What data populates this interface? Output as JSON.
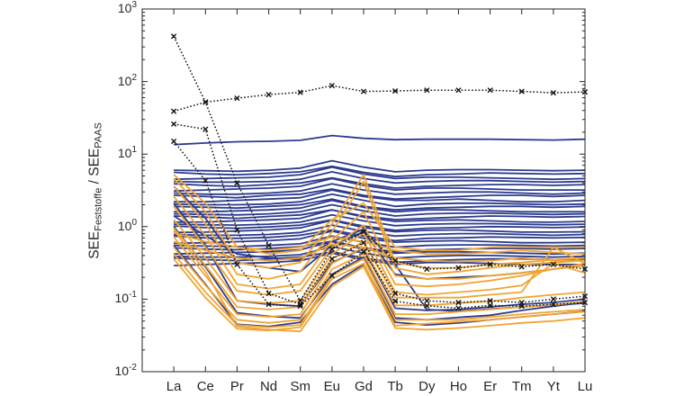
{
  "figure": {
    "background": "#ffffff",
    "axis_color": "#262626"
  },
  "labels": {
    "y_axis": {
      "a": "SEE",
      "a_sub": "Feststoffe",
      "sep": " / ",
      "b": "SEE",
      "b_sub": "PAAS"
    }
  },
  "chart_data": {
    "type": "line",
    "title": "",
    "xlabel": "",
    "ylabel": "SEE_Feststoffe / SEE_PAAS",
    "x_categories": [
      "La",
      "Ce",
      "Pr",
      "Nd",
      "Sm",
      "Eu",
      "Gd",
      "Tb",
      "Dy",
      "Ho",
      "Er",
      "Tm",
      "Yt",
      "Lu"
    ],
    "y_scale": "log",
    "ylim": [
      0.01,
      1000
    ],
    "y_tick_exponents": [
      3,
      2,
      1,
      0,
      -1,
      -2
    ],
    "grid": false,
    "legend": "none",
    "colors": {
      "navy": "#2c3b8d",
      "orange": "#f0a532",
      "black": "#141414"
    },
    "series": [
      {
        "id": "navy-00",
        "color": "navy",
        "style": "solid",
        "values": [
          13.5,
          14.2,
          14.8,
          15,
          15.5,
          18,
          16.5,
          15.8,
          16,
          16,
          16,
          15.8,
          15.6,
          16
        ]
      },
      {
        "id": "navy-01",
        "color": "navy",
        "style": "solid",
        "values": [
          6,
          5.9,
          5.8,
          6,
          6.4,
          8.1,
          6.6,
          5.7,
          6,
          6.1,
          6.1,
          6,
          5.9,
          6
        ]
      },
      {
        "id": "navy-02",
        "color": "navy",
        "style": "solid",
        "values": [
          5.6,
          5.3,
          5.2,
          5.4,
          5.7,
          6.8,
          5.6,
          4.9,
          5.2,
          5.3,
          5.5,
          5.4,
          5.3,
          5.4
        ]
      },
      {
        "id": "navy-03",
        "color": "navy",
        "style": "solid",
        "values": [
          4.5,
          4.6,
          4.7,
          4.8,
          5.2,
          6.6,
          5.3,
          4.6,
          4.8,
          4.8,
          4.7,
          4.6,
          4.5,
          4.6
        ]
      },
      {
        "id": "navy-04",
        "color": "navy",
        "style": "solid",
        "values": [
          4.2,
          4.1,
          4.1,
          4.2,
          4.5,
          5.7,
          4.6,
          4,
          4.2,
          4.3,
          4.3,
          4.2,
          4.1,
          4.2
        ]
      },
      {
        "id": "navy-05",
        "color": "navy",
        "style": "solid",
        "values": [
          3.9,
          3.7,
          3.6,
          3.8,
          4,
          4.7,
          3.9,
          3.4,
          3.6,
          3.7,
          3.8,
          3.8,
          3.7,
          3.8
        ]
      },
      {
        "id": "navy-06",
        "color": "navy",
        "style": "solid",
        "values": [
          3.1,
          3.2,
          3.3,
          3.4,
          3.6,
          4.6,
          3.7,
          3.2,
          3.4,
          3.4,
          3.3,
          3.2,
          3.2,
          3.2
        ]
      },
      {
        "id": "navy-07",
        "color": "navy",
        "style": "solid",
        "values": [
          2.9,
          2.8,
          2.8,
          2.9,
          3.1,
          3.9,
          3.2,
          2.8,
          2.9,
          3,
          3,
          2.9,
          2.8,
          2.9
        ]
      },
      {
        "id": "navy-08",
        "color": "navy",
        "style": "solid",
        "values": [
          2.7,
          2.6,
          2.5,
          2.7,
          2.8,
          3.3,
          2.7,
          2.4,
          2.5,
          2.6,
          2.7,
          2.7,
          2.6,
          2.7
        ]
      },
      {
        "id": "navy-09",
        "color": "navy",
        "style": "solid",
        "values": [
          2.2,
          2.2,
          2.3,
          2.4,
          2.5,
          3.2,
          2.6,
          2.3,
          2.3,
          2.4,
          2.3,
          2.2,
          2.2,
          2.3
        ]
      },
      {
        "id": "navy-10",
        "color": "navy",
        "style": "solid",
        "values": [
          2.05,
          2,
          2,
          2.05,
          2.2,
          2.8,
          2.3,
          1.9,
          2.05,
          2.1,
          2.1,
          2.05,
          2,
          2.05
        ]
      },
      {
        "id": "navy-11",
        "color": "navy",
        "style": "solid",
        "values": [
          1.9,
          1.85,
          1.8,
          1.9,
          2,
          2.4,
          1.9,
          1.7,
          1.8,
          1.85,
          1.9,
          1.9,
          1.85,
          1.9
        ]
      },
      {
        "id": "navy-12",
        "color": "navy",
        "style": "solid",
        "values": [
          1.6,
          1.6,
          1.65,
          1.7,
          1.8,
          2.3,
          1.85,
          1.6,
          1.7,
          1.7,
          1.65,
          1.6,
          1.6,
          1.6
        ]
      },
      {
        "id": "navy-13",
        "color": "navy",
        "style": "solid",
        "values": [
          1.5,
          1.47,
          1.45,
          1.5,
          1.6,
          2,
          1.65,
          1.4,
          1.5,
          1.53,
          1.53,
          1.5,
          1.47,
          1.5
        ]
      },
      {
        "id": "navy-14",
        "color": "navy",
        "style": "solid",
        "values": [
          1.4,
          1.35,
          1.3,
          1.38,
          1.45,
          1.7,
          1.4,
          1.25,
          1.3,
          1.35,
          1.4,
          1.38,
          1.35,
          1.38
        ]
      },
      {
        "id": "navy-15",
        "color": "navy",
        "style": "solid",
        "values": [
          1.15,
          1.16,
          1.2,
          1.24,
          1.3,
          1.7,
          1.35,
          1.18,
          1.22,
          1.24,
          1.2,
          1.16,
          1.15,
          1.18
        ]
      },
      {
        "id": "navy-16",
        "color": "navy",
        "style": "solid",
        "values": [
          1.08,
          1.06,
          1.05,
          1.08,
          1.15,
          1.45,
          1.2,
          1.03,
          1.08,
          1.1,
          1.1,
          1.08,
          1.06,
          1.08
        ]
      },
      {
        "id": "navy-17",
        "color": "navy",
        "style": "solid",
        "values": [
          1.02,
          0.97,
          0.95,
          0.99,
          1.05,
          1.24,
          1.02,
          0.89,
          0.95,
          0.97,
          1,
          0.99,
          0.97,
          0.99
        ]
      },
      {
        "id": "navy-18",
        "color": "navy",
        "style": "solid",
        "values": [
          0.83,
          0.84,
          0.87,
          0.9,
          0.96,
          1.22,
          0.97,
          0.85,
          0.89,
          0.9,
          0.87,
          0.84,
          0.84,
          0.85
        ]
      },
      {
        "id": "navy-19",
        "color": "navy",
        "style": "solid",
        "values": [
          0.78,
          0.76,
          0.76,
          0.78,
          0.83,
          1.05,
          0.86,
          0.74,
          0.78,
          0.8,
          0.8,
          0.78,
          0.76,
          0.78
        ]
      },
      {
        "id": "navy-20",
        "color": "navy",
        "style": "solid",
        "values": [
          0.74,
          0.7,
          0.69,
          0.71,
          0.76,
          0.9,
          0.74,
          0.64,
          0.69,
          0.7,
          0.72,
          0.71,
          0.7,
          0.71
        ]
      },
      {
        "id": "navy-21",
        "color": "navy",
        "style": "solid",
        "values": [
          0.59,
          0.6,
          0.62,
          0.64,
          0.68,
          0.87,
          0.69,
          0.61,
          0.63,
          0.64,
          0.62,
          0.6,
          0.6,
          0.61
        ]
      },
      {
        "id": "navy-22",
        "color": "navy",
        "style": "solid",
        "values": [
          0.55,
          0.54,
          0.53,
          0.55,
          0.58,
          0.74,
          0.61,
          0.52,
          0.55,
          0.56,
          0.56,
          0.55,
          0.54,
          0.55
        ]
      },
      {
        "id": "navy-23",
        "color": "navy",
        "style": "solid",
        "values": [
          0.51,
          0.49,
          0.48,
          0.5,
          0.53,
          0.63,
          0.51,
          0.45,
          0.48,
          0.49,
          0.5,
          0.5,
          0.49,
          0.5
        ]
      },
      {
        "id": "navy-24",
        "color": "navy",
        "style": "solid",
        "values": [
          0.42,
          0.43,
          0.44,
          0.45,
          0.48,
          0.62,
          0.49,
          0.43,
          0.45,
          0.45,
          0.44,
          0.43,
          0.42,
          0.43
        ]
      },
      {
        "id": "navy-25",
        "color": "navy",
        "style": "solid",
        "values": [
          0.39,
          0.38,
          0.38,
          0.39,
          0.41,
          0.53,
          0.43,
          0.37,
          0.39,
          0.4,
          0.4,
          0.39,
          0.38,
          0.39
        ]
      },
      {
        "id": "navy-26",
        "color": "navy",
        "style": "solid",
        "values": [
          0.37,
          0.35,
          0.34,
          0.36,
          0.38,
          0.45,
          0.37,
          0.32,
          0.34,
          0.35,
          0.36,
          0.36,
          0.35,
          0.36
        ]
      },
      {
        "id": "navy-27",
        "color": "navy",
        "style": "solid",
        "values": [
          0.29,
          0.3,
          0.31,
          0.32,
          0.34,
          0.43,
          0.35,
          0.3,
          0.32,
          0.32,
          0.31,
          0.3,
          0.3,
          0.3
        ]
      },
      {
        "id": "navy-dip-28",
        "color": "navy",
        "style": "solid",
        "values": [
          2.1,
          0.55,
          0.095,
          0.085,
          0.08,
          0.32,
          0.5,
          0.075,
          0.07,
          0.072,
          0.078,
          0.085,
          0.09,
          0.1
        ]
      },
      {
        "id": "navy-dip-29",
        "color": "navy",
        "style": "solid",
        "values": [
          1,
          0.28,
          0.065,
          0.058,
          0.055,
          0.22,
          0.38,
          0.055,
          0.052,
          0.056,
          0.06,
          0.07,
          0.08,
          0.09
        ]
      },
      {
        "id": "navy-dip-30",
        "color": "navy",
        "style": "solid",
        "values": [
          0.55,
          0.16,
          0.045,
          0.042,
          0.048,
          0.16,
          0.3,
          0.048,
          0.044,
          0.047,
          0.052,
          0.057,
          0.062,
          0.068
        ]
      },
      {
        "id": "navy-dip-31",
        "color": "navy",
        "style": "solid",
        "values": [
          3.6,
          1.3,
          0.32,
          0.27,
          0.24,
          0.55,
          0.85,
          0.22,
          0.19,
          0.2,
          0.21,
          0.23,
          0.26,
          0.29
        ]
      },
      {
        "id": "navy-dip-32",
        "color": "navy",
        "style": "solid",
        "values": [
          1.4,
          0.75,
          0.42,
          0.37,
          0.35,
          0.62,
          0.92,
          0.3,
          0.072,
          0.068,
          0.073,
          0.078,
          0.083,
          0.088
        ]
      },
      {
        "id": "orange-01",
        "color": "orange",
        "style": "solid",
        "values": [
          4.6,
          1.6,
          0.32,
          0.27,
          0.32,
          1.1,
          5.2,
          0.32,
          0.27,
          0.27,
          0.3,
          0.32,
          0.35,
          0.37
        ]
      },
      {
        "id": "orange-02",
        "color": "orange",
        "style": "solid",
        "values": [
          3.6,
          1.1,
          0.22,
          0.19,
          0.24,
          0.85,
          4.2,
          0.27,
          0.22,
          0.24,
          0.27,
          0.3,
          0.32,
          0.34
        ]
      },
      {
        "id": "orange-03",
        "color": "orange",
        "style": "solid",
        "values": [
          2.6,
          0.75,
          0.16,
          0.14,
          0.16,
          0.65,
          1.6,
          0.21,
          0.19,
          0.19,
          0.21,
          0.23,
          0.26,
          0.31
        ]
      },
      {
        "id": "orange-04",
        "color": "orange",
        "style": "solid",
        "values": [
          1.9,
          0.52,
          0.13,
          0.115,
          0.13,
          0.52,
          1.05,
          0.16,
          0.15,
          0.16,
          0.18,
          0.21,
          0.26,
          0.29
        ]
      },
      {
        "id": "orange-05",
        "color": "orange",
        "style": "solid",
        "values": [
          1.25,
          0.37,
          0.095,
          0.088,
          0.095,
          0.42,
          0.82,
          0.125,
          0.115,
          0.125,
          0.135,
          0.155,
          0.31,
          0.23
        ]
      },
      {
        "id": "orange-06",
        "color": "orange",
        "style": "solid",
        "values": [
          0.95,
          0.29,
          0.078,
          0.072,
          0.078,
          0.36,
          0.62,
          0.105,
          0.105,
          0.105,
          0.115,
          0.125,
          0.52,
          0.31
        ]
      },
      {
        "id": "orange-07",
        "color": "orange",
        "style": "solid",
        "values": [
          0.72,
          0.21,
          0.062,
          0.057,
          0.062,
          0.31,
          0.52,
          0.082,
          0.082,
          0.088,
          0.093,
          0.105,
          0.115,
          0.125
        ]
      },
      {
        "id": "orange-08",
        "color": "orange",
        "style": "solid",
        "values": [
          0.52,
          0.155,
          0.052,
          0.047,
          0.052,
          0.26,
          0.42,
          0.062,
          0.062,
          0.067,
          0.072,
          0.078,
          0.083,
          0.093
        ]
      },
      {
        "id": "orange-09",
        "color": "orange",
        "style": "solid",
        "values": [
          0.42,
          0.125,
          0.044,
          0.041,
          0.044,
          0.21,
          0.36,
          0.052,
          0.052,
          0.052,
          0.057,
          0.062,
          0.067,
          0.072
        ]
      },
      {
        "id": "orange-10",
        "color": "orange",
        "style": "solid",
        "values": [
          0.36,
          0.105,
          0.039,
          0.037,
          0.041,
          0.19,
          0.31,
          0.043,
          0.046,
          0.049,
          0.052,
          0.057,
          0.062,
          0.067
        ]
      },
      {
        "id": "orange-11",
        "color": "orange",
        "style": "solid",
        "values": [
          0.82,
          0.62,
          0.52,
          0.47,
          0.52,
          0.72,
          0.62,
          0.47,
          0.42,
          0.42,
          0.44,
          0.47,
          0.44,
          0.42
        ]
      },
      {
        "id": "orange-12",
        "color": "orange",
        "style": "solid",
        "values": [
          0.62,
          0.47,
          0.37,
          0.34,
          0.37,
          0.57,
          0.52,
          0.37,
          0.34,
          0.33,
          0.34,
          0.37,
          0.34,
          0.34
        ]
      },
      {
        "id": "orange-13",
        "color": "orange",
        "style": "solid",
        "values": [
          5.2,
          2.1,
          0.52,
          0.42,
          0.47,
          1.25,
          2.1,
          0.52,
          0.47,
          0.47,
          0.52,
          0.52,
          0.52,
          0.52
        ]
      },
      {
        "id": "orange-14",
        "color": "orange",
        "style": "solid",
        "values": [
          0.9,
          0.24,
          0.042,
          0.038,
          0.036,
          0.15,
          0.28,
          0.04,
          0.038,
          0.04,
          0.043,
          0.047,
          0.05,
          0.055
        ]
      },
      {
        "id": "dotted-01",
        "color": "black",
        "style": "dotted-x",
        "values": [
          420,
          52,
          4,
          0.55,
          0.095,
          0.49,
          0.85,
          0.34,
          0.26,
          0.27,
          0.3,
          0.28,
          0.3,
          0.26
        ]
      },
      {
        "id": "dotted-02",
        "color": "black",
        "style": "dotted-x",
        "values": [
          39,
          52,
          59,
          66,
          71,
          88,
          73,
          74,
          76,
          76,
          76,
          73,
          70,
          72
        ]
      },
      {
        "id": "dotted-03",
        "color": "black",
        "style": "dotted-x",
        "values": [
          26,
          22,
          0.9,
          0.12,
          0.085,
          0.36,
          0.6,
          0.12,
          0.095,
          0.09,
          0.095,
          0.09,
          0.1,
          0.11
        ]
      },
      {
        "id": "dotted-04",
        "color": "black",
        "style": "dotted-x",
        "values": [
          15,
          4.3,
          0.3,
          0.085,
          0.08,
          0.21,
          0.45,
          0.094,
          0.081,
          0.075,
          0.082,
          0.08,
          0.085,
          0.09
        ]
      }
    ]
  }
}
